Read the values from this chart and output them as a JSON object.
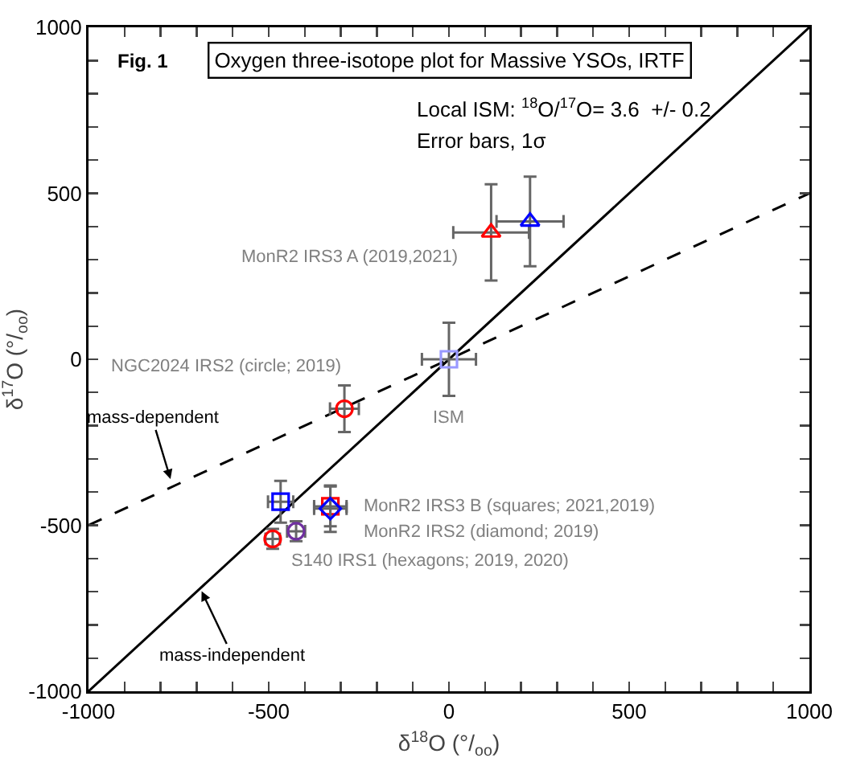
{
  "chart_data": {
    "type": "scatter",
    "title": "Oxygen three-isotope plot for Massive YSOs, IRTF",
    "xlabel": "δ$^{18}$O (°/$_{oo}$)",
    "ylabel": "δ$^{17}$O (°/$_{oo}$)",
    "xlim": [
      -1000,
      1000
    ],
    "ylim": [
      -1000,
      1000
    ],
    "xticks": [
      -1000,
      {
        "value": -900,
        "label": null
      },
      {
        "value": -800,
        "label": null
      },
      {
        "value": -700,
        "label": null
      },
      {
        "value": -600,
        "label": null
      },
      -500,
      {
        "value": -400,
        "label": null
      },
      {
        "value": -300,
        "label": null
      },
      {
        "value": -200,
        "label": null
      },
      {
        "value": -100,
        "label": null
      },
      0,
      {
        "value": 100,
        "label": null
      },
      {
        "value": 200,
        "label": null
      },
      {
        "value": 300,
        "label": null
      },
      {
        "value": 400,
        "label": null
      },
      500,
      {
        "value": 600,
        "label": null
      },
      {
        "value": 700,
        "label": null
      },
      {
        "value": 800,
        "label": null
      },
      {
        "value": 900,
        "label": null
      },
      1000
    ],
    "yticks": [
      -1000,
      {
        "value": -900,
        "label": null
      },
      {
        "value": -800,
        "label": null
      },
      {
        "value": -700,
        "label": null
      },
      {
        "value": -600,
        "label": null
      },
      -500,
      {
        "value": -400,
        "label": null
      },
      {
        "value": -300,
        "label": null
      },
      {
        "value": -200,
        "label": null
      },
      {
        "value": -100,
        "label": null
      },
      0,
      {
        "value": 100,
        "label": null
      },
      {
        "value": 200,
        "label": null
      },
      {
        "value": 300,
        "label": null
      },
      {
        "value": 400,
        "label": null
      },
      500,
      {
        "value": 600,
        "label": null
      },
      {
        "value": 700,
        "label": null
      },
      {
        "value": 800,
        "label": null
      },
      {
        "value": 900,
        "label": null
      },
      1000
    ],
    "grid": false,
    "series": [
      {
        "type": "line",
        "color": "#000000",
        "line_style": "solid",
        "marker": "none",
        "x": [
          -1000,
          1000
        ],
        "values": [
          -1000,
          1000
        ]
      },
      {
        "type": "line",
        "color": "#000000",
        "line_style": "dashed",
        "marker": "none",
        "x": [
          -1000,
          1000
        ],
        "values": [
          -500,
          500
        ]
      },
      {
        "color": "#9999ff",
        "marker": "square",
        "x": [
          0
        ],
        "values": [
          0
        ],
        "errors": [
          110
        ],
        "xerrors": [
          75
        ]
      },
      {
        "color": "#ff0000",
        "marker": "triangle",
        "x": [
          117
        ],
        "values": [
          382
        ],
        "errors": [
          145
        ],
        "xerrors": [
          105
        ]
      },
      {
        "color": "#0000ff",
        "marker": "triangle",
        "x": [
          225
        ],
        "values": [
          415
        ],
        "errors": [
          135
        ],
        "xerrors": [
          93
        ]
      },
      {
        "color": "#ff0000",
        "marker": "circle",
        "x": [
          -290
        ],
        "values": [
          -149
        ],
        "errors": [
          70
        ],
        "xerrors": [
          40
        ]
      },
      {
        "color": "#0000ff",
        "marker": "square",
        "x": [
          -467
        ],
        "values": [
          -429
        ],
        "errors": [
          63
        ],
        "xerrors": [
          35
        ]
      },
      {
        "color": "#ff0000",
        "marker": "square",
        "x": [
          -329
        ],
        "values": [
          -443
        ],
        "errors": [
          60
        ],
        "xerrors": [
          45
        ]
      },
      {
        "color": "#0000ff",
        "marker": "diamond",
        "x": [
          -329
        ],
        "values": [
          -450
        ],
        "errors": [
          70
        ],
        "xerrors": [
          45
        ]
      },
      {
        "color": "#ff0000",
        "marker": "circle",
        "x": [
          -489
        ],
        "values": [
          -541
        ],
        "errors": [
          30
        ],
        "xerrors": [
          20
        ]
      },
      {
        "color": "#7030a0",
        "marker": "circle",
        "x": [
          -424
        ],
        "values": [
          -518
        ],
        "errors": [
          30
        ],
        "xerrors": [
          25
        ]
      }
    ],
    "annotations": [
      "Fig. 1",
      "Local ISM: $^{18}$O/$^{17}$O= 3.6  +/- 0.2",
      "Error bars, 1σ",
      {
        "text": "MonR2 IRS3 A (2019,2021)",
        "x": 117,
        "y": 382
      },
      {
        "text": "NGC2024 IRS2 (circle; 2019)",
        "x": -290,
        "y": -149
      },
      {
        "text": "ISM",
        "x": 0,
        "y": 0
      },
      {
        "text": "MonR2 IRS3 B (squares; 2021,2019)",
        "x": -329,
        "y": -443
      },
      {
        "text": "MonR2 IRS2 (diamond; 2019)",
        "x": -329,
        "y": -450
      },
      {
        "text": "S140 IRS1 (hexagons; 2019, 2020)",
        "x": -424,
        "y": -518
      },
      {
        "text": "mass-dependent",
        "x": -770,
        "y": -370
      },
      {
        "text": "mass-independent",
        "x": -690,
        "y": -690
      }
    ]
  }
}
